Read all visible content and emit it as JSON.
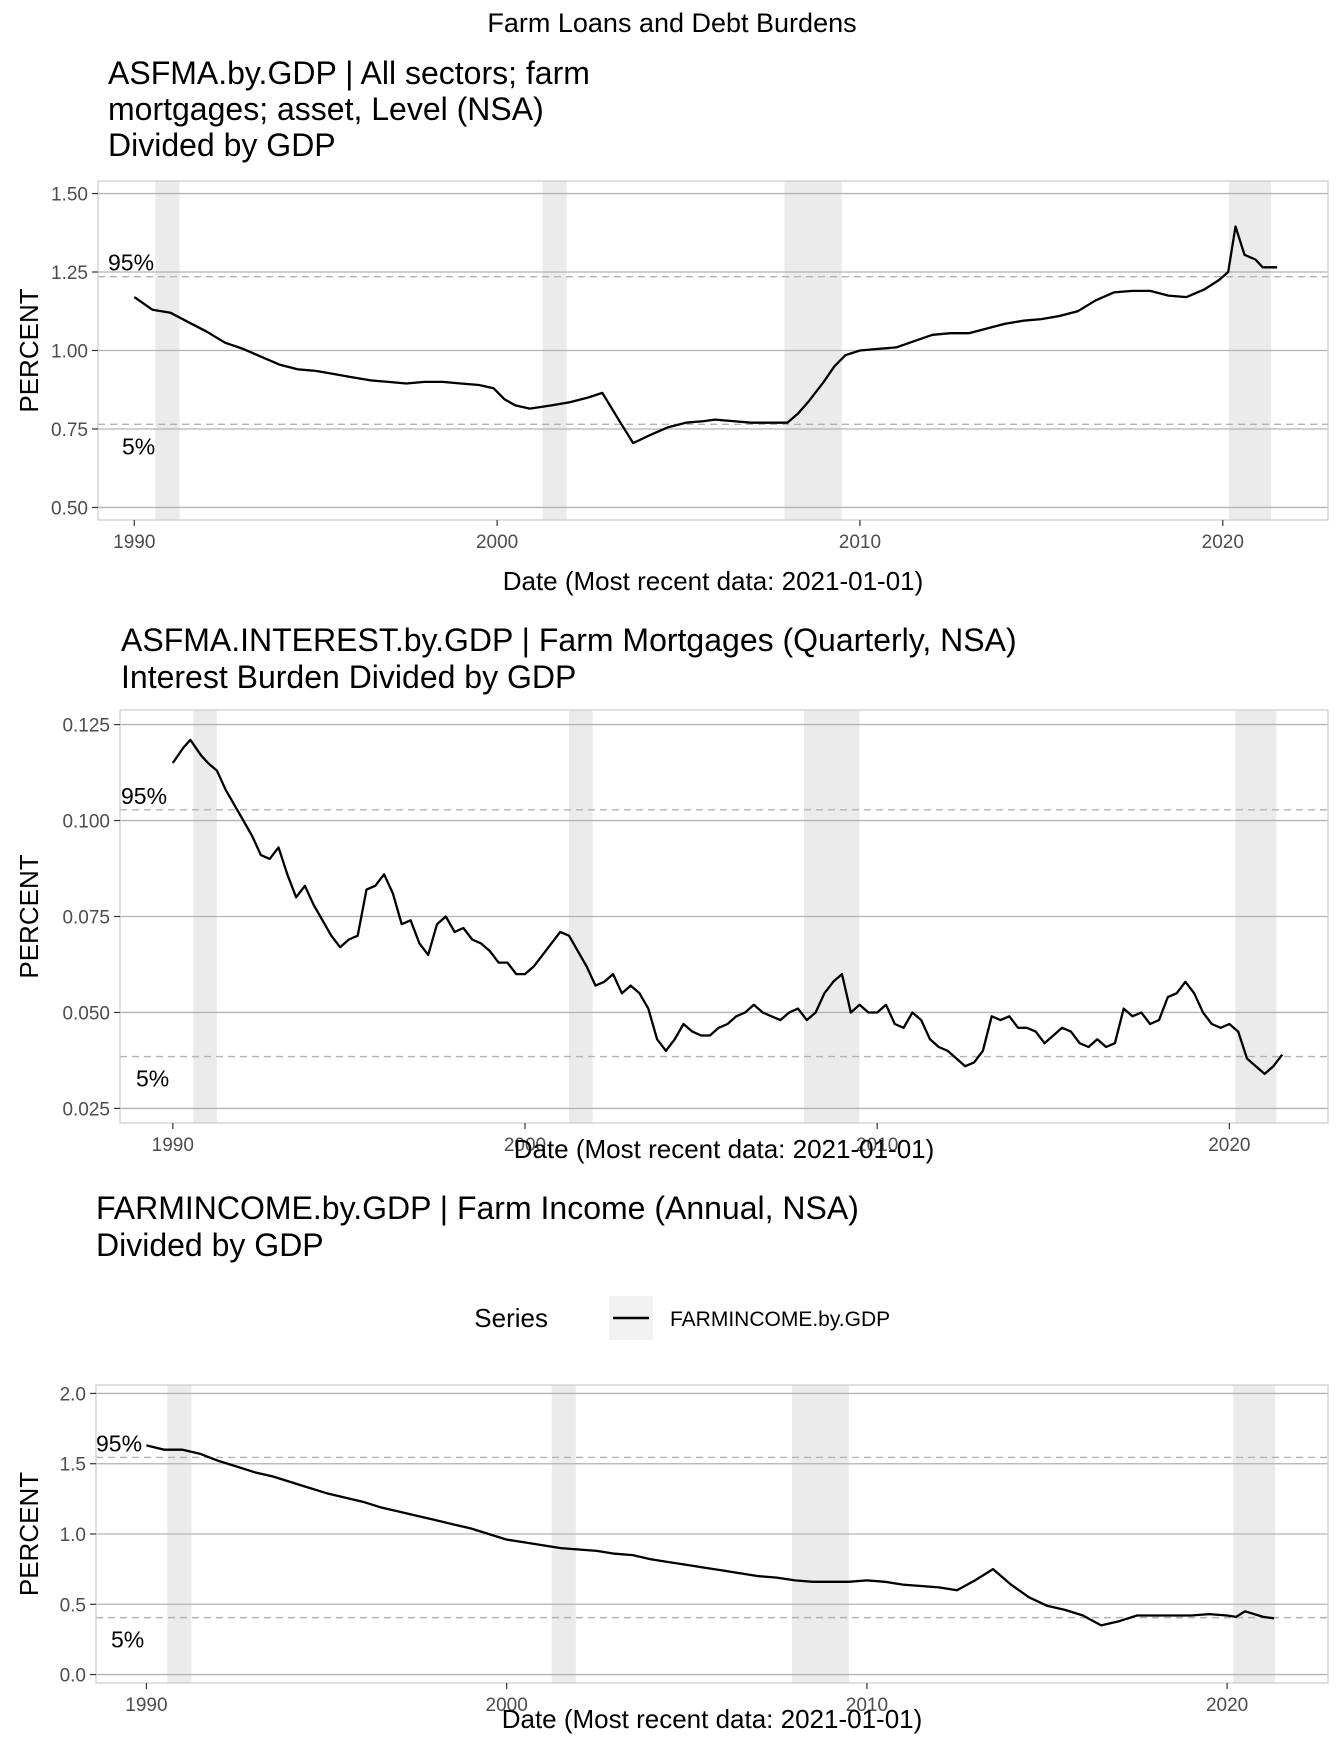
{
  "figure": {
    "title": "Farm Loans and Debt Burdens",
    "colors": {
      "line": "#000000",
      "recession": "#ebebeb",
      "grid": "#b3b3b3",
      "border": "#cccccc",
      "pct_line": "#b3b3b3"
    }
  },
  "chart_data": [
    {
      "type": "line",
      "title_lines": [
        "ASFMA.by.GDP | All sectors; farm",
        "mortgages; asset, Level (NSA)",
        "Divided by GDP"
      ],
      "xlabel": "Date (Most recent data: 2021-01-01)",
      "ylabel": "PERCENT",
      "xlim": [
        1989.0,
        2022.9
      ],
      "ylim": [
        0.46,
        1.54
      ],
      "x_ticks": [
        1990,
        2000,
        2010,
        2020
      ],
      "x_tick_labels": [
        "1990",
        "2000",
        "2010",
        "2020"
      ],
      "y_ticks": [
        0.5,
        0.75,
        1.0,
        1.25,
        1.5
      ],
      "y_tick_labels": [
        "0.50",
        "0.75",
        "1.00",
        "1.25",
        "1.50"
      ],
      "percentiles": [
        {
          "label": "95%",
          "value": 1.235
        },
        {
          "label": "5%",
          "value": 0.765
        }
      ],
      "recessions": [
        [
          1990.58,
          1991.25
        ],
        [
          2001.25,
          2001.92
        ],
        [
          2007.92,
          2009.5
        ],
        [
          2020.17,
          2021.33
        ]
      ],
      "series": [
        {
          "x": [
            1990.0,
            1990.5,
            1991.0,
            1991.5,
            1992.0,
            1992.5,
            1993.0,
            1993.5,
            1994.0,
            1994.5,
            1995.0,
            1995.5,
            1996.0,
            1996.5,
            1997.0,
            1997.5,
            1998.0,
            1998.5,
            1999.0,
            1999.5,
            1999.9,
            2000.2,
            2000.5,
            2000.9,
            2001.2,
            2001.5,
            2002.0,
            2002.5,
            2002.9,
            2003.4,
            2003.75,
            2004.2,
            2004.7,
            2005.2,
            2005.7,
            2006.0,
            2006.5,
            2007.0,
            2007.5,
            2008.0,
            2008.3,
            2008.6,
            2009.0,
            2009.3,
            2009.6,
            2010.0,
            2010.5,
            2011.0,
            2011.5,
            2012.0,
            2012.5,
            2013.0,
            2013.5,
            2014.0,
            2014.5,
            2015.0,
            2015.5,
            2016.0,
            2016.5,
            2017.0,
            2017.5,
            2018.0,
            2018.5,
            2019.0,
            2019.5,
            2019.9,
            2020.15,
            2020.35,
            2020.6,
            2020.9,
            2021.1,
            2021.5
          ],
          "y": [
            1.17,
            1.13,
            1.12,
            1.09,
            1.06,
            1.025,
            1.005,
            0.98,
            0.955,
            0.94,
            0.935,
            0.925,
            0.915,
            0.905,
            0.9,
            0.895,
            0.9,
            0.9,
            0.895,
            0.89,
            0.88,
            0.845,
            0.825,
            0.815,
            0.82,
            0.825,
            0.835,
            0.85,
            0.865,
            0.77,
            0.705,
            0.73,
            0.755,
            0.77,
            0.775,
            0.78,
            0.775,
            0.77,
            0.77,
            0.77,
            0.8,
            0.84,
            0.9,
            0.95,
            0.985,
            1.0,
            1.005,
            1.01,
            1.03,
            1.05,
            1.055,
            1.055,
            1.07,
            1.085,
            1.095,
            1.1,
            1.11,
            1.125,
            1.16,
            1.185,
            1.19,
            1.19,
            1.175,
            1.17,
            1.195,
            1.225,
            1.25,
            1.395,
            1.305,
            1.29,
            1.265,
            1.265
          ]
        }
      ]
    },
    {
      "type": "line",
      "title_lines": [
        "ASFMA.INTEREST.by.GDP | Farm Mortgages (Quarterly, NSA)",
        "Interest Burden Divided by GDP"
      ],
      "xlabel": "Date (Most recent data: 2021-01-01)",
      "ylabel": "PERCENT",
      "xlim": [
        1988.5,
        2022.8
      ],
      "ylim": [
        0.0212,
        0.1288
      ],
      "x_ticks": [
        1990,
        2000,
        2010,
        2020
      ],
      "x_tick_labels": [
        "1990",
        "2000",
        "2010",
        "2020"
      ],
      "y_ticks": [
        0.025,
        0.05,
        0.075,
        0.1,
        0.125
      ],
      "y_tick_labels": [
        "0.025",
        "0.050",
        "0.075",
        "0.100",
        "0.125"
      ],
      "percentiles": [
        {
          "label": "95%",
          "value": 0.1028
        },
        {
          "label": "5%",
          "value": 0.0385
        }
      ],
      "recessions": [
        [
          1990.58,
          1991.25
        ],
        [
          2001.25,
          2001.92
        ],
        [
          2007.92,
          2009.5
        ],
        [
          2020.17,
          2021.33
        ]
      ],
      "series": [
        {
          "x": [
            1990.0,
            1990.3,
            1990.5,
            1990.8,
            1991.0,
            1991.25,
            1991.5,
            1991.75,
            1992.0,
            1992.25,
            1992.5,
            1992.75,
            1993.0,
            1993.25,
            1993.5,
            1993.75,
            1994.0,
            1994.25,
            1994.5,
            1994.75,
            1995.0,
            1995.25,
            1995.5,
            1995.75,
            1996.0,
            1996.25,
            1996.5,
            1996.75,
            1997.0,
            1997.25,
            1997.5,
            1997.75,
            1998.0,
            1998.25,
            1998.5,
            1998.75,
            1999.0,
            1999.25,
            1999.5,
            1999.75,
            2000.0,
            2000.25,
            2000.5,
            2000.75,
            2001.0,
            2001.25,
            2001.5,
            2001.75,
            2002.0,
            2002.25,
            2002.5,
            2002.75,
            2003.0,
            2003.25,
            2003.5,
            2003.75,
            2004.0,
            2004.25,
            2004.5,
            2004.75,
            2005.0,
            2005.25,
            2005.5,
            2005.75,
            2006.0,
            2006.25,
            2006.5,
            2006.75,
            2007.0,
            2007.25,
            2007.5,
            2007.75,
            2008.0,
            2008.25,
            2008.5,
            2008.75,
            2009.0,
            2009.25,
            2009.5,
            2009.75,
            2010.0,
            2010.25,
            2010.5,
            2010.75,
            2011.0,
            2011.25,
            2011.5,
            2011.75,
            2012.0,
            2012.25,
            2012.5,
            2012.75,
            2013.0,
            2013.25,
            2013.5,
            2013.75,
            2014.0,
            2014.25,
            2014.5,
            2014.75,
            2015.0,
            2015.25,
            2015.5,
            2015.75,
            2016.0,
            2016.25,
            2016.5,
            2016.75,
            2017.0,
            2017.25,
            2017.5,
            2017.75,
            2018.0,
            2018.25,
            2018.5,
            2018.75,
            2019.0,
            2019.25,
            2019.5,
            2019.75,
            2020.0,
            2020.25,
            2020.5,
            2020.75,
            2021.0,
            2021.25,
            2021.5
          ],
          "y": [
            0.115,
            0.119,
            0.121,
            0.117,
            0.115,
            0.113,
            0.108,
            0.104,
            0.1,
            0.096,
            0.091,
            0.09,
            0.093,
            0.086,
            0.08,
            0.083,
            0.078,
            0.074,
            0.07,
            0.067,
            0.069,
            0.07,
            0.082,
            0.083,
            0.086,
            0.081,
            0.073,
            0.074,
            0.068,
            0.065,
            0.073,
            0.075,
            0.071,
            0.072,
            0.069,
            0.068,
            0.066,
            0.063,
            0.063,
            0.06,
            0.06,
            0.062,
            0.065,
            0.068,
            0.071,
            0.07,
            0.066,
            0.062,
            0.057,
            0.058,
            0.06,
            0.055,
            0.057,
            0.055,
            0.051,
            0.043,
            0.04,
            0.043,
            0.047,
            0.045,
            0.044,
            0.044,
            0.046,
            0.047,
            0.049,
            0.05,
            0.052,
            0.05,
            0.049,
            0.048,
            0.05,
            0.051,
            0.048,
            0.05,
            0.055,
            0.058,
            0.06,
            0.05,
            0.052,
            0.05,
            0.05,
            0.052,
            0.047,
            0.046,
            0.05,
            0.048,
            0.043,
            0.041,
            0.04,
            0.038,
            0.036,
            0.037,
            0.04,
            0.049,
            0.048,
            0.049,
            0.046,
            0.046,
            0.045,
            0.042,
            0.044,
            0.046,
            0.045,
            0.042,
            0.041,
            0.043,
            0.041,
            0.042,
            0.051,
            0.049,
            0.05,
            0.047,
            0.048,
            0.054,
            0.055,
            0.058,
            0.055,
            0.05,
            0.047,
            0.046,
            0.047,
            0.045,
            0.038,
            0.036,
            0.034,
            0.036,
            0.039
          ]
        }
      ]
    },
    {
      "type": "line",
      "title_lines": [
        "FARMINCOME.by.GDP | Farm Income (Annual, NSA)",
        "Divided by GDP"
      ],
      "xlabel": "Date (Most recent data: 2021-01-01)",
      "ylabel": "PERCENT",
      "xlim": [
        1988.6,
        2022.8
      ],
      "ylim": [
        -0.06,
        2.06
      ],
      "x_ticks": [
        1990,
        2000,
        2010,
        2020
      ],
      "x_tick_labels": [
        "1990",
        "2000",
        "2010",
        "2020"
      ],
      "y_ticks": [
        0.0,
        0.5,
        1.0,
        1.5,
        2.0
      ],
      "y_tick_labels": [
        "0.0",
        "0.5",
        "1.0",
        "1.5",
        "2.0"
      ],
      "percentiles": [
        {
          "label": "95%",
          "value": 1.545
        },
        {
          "label": "5%",
          "value": 0.405
        }
      ],
      "recessions": [
        [
          1990.58,
          1991.25
        ],
        [
          2001.25,
          2001.92
        ],
        [
          2007.92,
          2009.5
        ],
        [
          2020.17,
          2021.33
        ]
      ],
      "legend": {
        "title": "Series",
        "entries": [
          "FARMINCOME.by.GDP"
        ],
        "position": "top"
      },
      "series": [
        {
          "name": "FARMINCOME.by.GDP",
          "x": [
            1990.0,
            1990.5,
            1991.0,
            1991.5,
            1992.0,
            1992.5,
            1993.0,
            1993.5,
            1994.0,
            1994.5,
            1995.0,
            1995.5,
            1996.0,
            1996.5,
            1997.0,
            1997.5,
            1998.0,
            1998.5,
            1999.0,
            1999.5,
            2000.0,
            2000.5,
            2001.0,
            2001.5,
            2002.0,
            2002.5,
            2003.0,
            2003.5,
            2004.0,
            2004.5,
            2005.0,
            2005.5,
            2006.0,
            2006.5,
            2007.0,
            2007.5,
            2008.0,
            2008.5,
            2009.0,
            2009.5,
            2010.0,
            2010.5,
            2011.0,
            2011.5,
            2012.0,
            2012.5,
            2013.0,
            2013.5,
            2014.0,
            2014.5,
            2015.0,
            2015.5,
            2016.0,
            2016.5,
            2017.0,
            2017.5,
            2018.0,
            2018.5,
            2019.0,
            2019.5,
            2020.0,
            2020.25,
            2020.5,
            2021.0,
            2021.3
          ],
          "y": [
            1.63,
            1.6,
            1.6,
            1.57,
            1.52,
            1.48,
            1.44,
            1.41,
            1.37,
            1.33,
            1.29,
            1.26,
            1.23,
            1.19,
            1.16,
            1.13,
            1.1,
            1.07,
            1.04,
            1.0,
            0.96,
            0.94,
            0.92,
            0.9,
            0.89,
            0.88,
            0.86,
            0.85,
            0.82,
            0.8,
            0.78,
            0.76,
            0.74,
            0.72,
            0.7,
            0.69,
            0.67,
            0.66,
            0.66,
            0.66,
            0.67,
            0.66,
            0.64,
            0.63,
            0.62,
            0.6,
            0.67,
            0.75,
            0.64,
            0.55,
            0.49,
            0.46,
            0.42,
            0.35,
            0.38,
            0.42,
            0.42,
            0.42,
            0.42,
            0.43,
            0.42,
            0.41,
            0.45,
            0.41,
            0.4
          ]
        }
      ]
    }
  ]
}
